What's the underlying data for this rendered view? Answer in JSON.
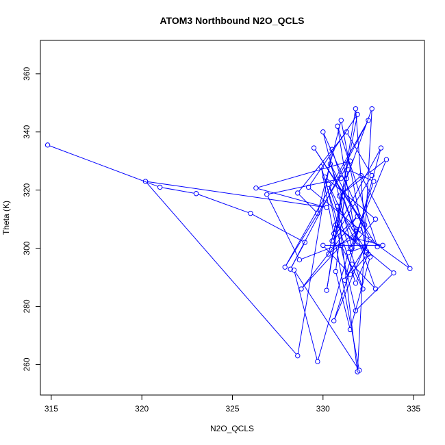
{
  "chart_data": {
    "type": "line",
    "title": "ATOM3 Northbound N2O_QCLS",
    "xlabel": "N2O_QCLS",
    "ylabel": "Theta (K)",
    "xlim": [
      314.4,
      335.6
    ],
    "ylim": [
      249.5,
      371.5
    ],
    "x_ticks": [
      315,
      320,
      325,
      330,
      335
    ],
    "y_ticks": [
      260,
      280,
      300,
      320,
      340,
      360
    ],
    "grid": false,
    "legend": "none",
    "color": "#0000FF",
    "marker": "open-circle",
    "series": [
      {
        "x": [
          314.8,
          321.0,
          323.0,
          326.0,
          329.0,
          328.2,
          332.5,
          327.9,
          331.5,
          326.3,
          330.2,
          320.2,
          328.6,
          330.5,
          331.0,
          326.9,
          328.7,
          331.8,
          330.8,
          333.0,
          329.5,
          332.3,
          330.0,
          331.6,
          332.8,
          331.4,
          330.3,
          332.0,
          329.2,
          331.9,
          330.6,
          333.2,
          331.2,
          332.6,
          330.4,
          331.7,
          334.8,
          332.1,
          330.9,
          333.5,
          331.5,
          332.9,
          330.1,
          331.8,
          333.9,
          330.7,
          332.4,
          331.0,
          329.7,
          328.6,
          331.3,
          332.7,
          330.5,
          331.9,
          328.8,
          331.0,
          332.2,
          330.3,
          331.7,
          333.3,
          330.0,
          331.5,
          332.5,
          331.8,
          329.9,
          332.0,
          328.4,
          329.7,
          331.4,
          332.3,
          330.6,
          331.6,
          332.9,
          331.1,
          330.2,
          331.8,
          332.4,
          330.8,
          331.9,
          332.7,
          331.3,
          330.7,
          331.5,
          332.6
        ],
        "y": [
          335.5,
          321.0,
          318.8,
          312.0,
          302.0,
          292.8,
          344.0,
          293.5,
          330.0,
          320.7,
          314.0,
          323.0,
          263.0,
          334.0,
          324.0,
          318.5,
          296.0,
          303.5,
          342.0,
          300.5,
          334.5,
          308.0,
          340.0,
          300.0,
          323.0,
          327.0,
          298.0,
          306.5,
          321.0,
          346.0,
          305.0,
          334.5,
          289.0,
          303.0,
          329.0,
          307.0,
          293.0,
          325.0,
          318.0,
          330.5,
          300.0,
          310.0,
          324.5,
          278.5,
          291.5,
          308.0,
          298.5,
          344.0,
          312.0,
          319.0,
          340.0,
          325.0,
          302.5,
          311.0,
          286.0,
          301.0,
          286.0,
          322.0,
          303.5,
          301.0,
          301.0,
          291.0,
          298.0,
          288.0,
          328.0,
          258.0,
          292.5,
          261.0,
          298.5,
          300.5,
          275.0,
          294.5,
          286.0,
          318.0,
          285.5,
          348.0,
          299.0,
          314.5,
          257.5,
          348.0,
          324.0,
          292.0,
          272.0,
          297.0
        ]
      }
    ]
  }
}
